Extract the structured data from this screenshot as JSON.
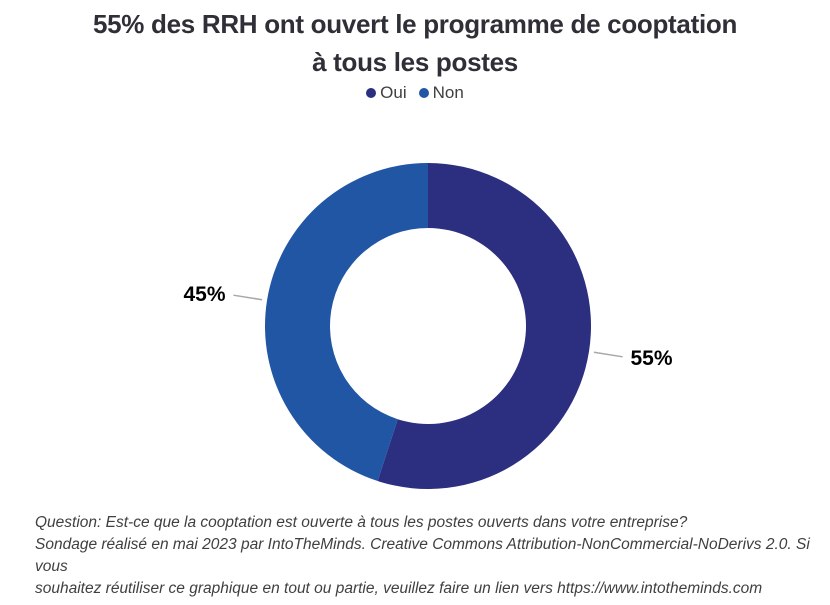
{
  "title": {
    "text": "55% des RRH ont ouvert le programme de cooptation\nà tous les postes"
  },
  "chart_data": {
    "type": "pie",
    "subtype": "donut",
    "title": "55% des RRH ont ouvert le programme de cooptation à tous les postes",
    "categories": [
      "Oui",
      "Non"
    ],
    "values": [
      55,
      45
    ],
    "data_labels": [
      "55%",
      "45%"
    ],
    "colors": [
      "#2c2e7f",
      "#2156a5"
    ],
    "label_color": "#000000",
    "leader_line_color": "#a8a8a8",
    "legend_position": "top",
    "start_angle_deg": 0,
    "clockwise": true,
    "inner_radius_ratio": 0.6
  },
  "legend": {
    "items": [
      {
        "label": "Oui",
        "color": "#2c2e7f"
      },
      {
        "label": "Non",
        "color": "#2156a5"
      }
    ]
  },
  "footer": {
    "text": "Question: Est-ce que la cooptation est ouverte à tous les postes ouverts dans votre entreprise?\nSondage réalisé en mai 2023 par IntoTheMinds. Creative Commons Attribution-NonCommercial-NoDerivs 2.0. Si vous\nsouhaitez réutiliser ce graphique en tout ou partie, veuillez faire un lien vers https://www.intotheminds.com"
  }
}
